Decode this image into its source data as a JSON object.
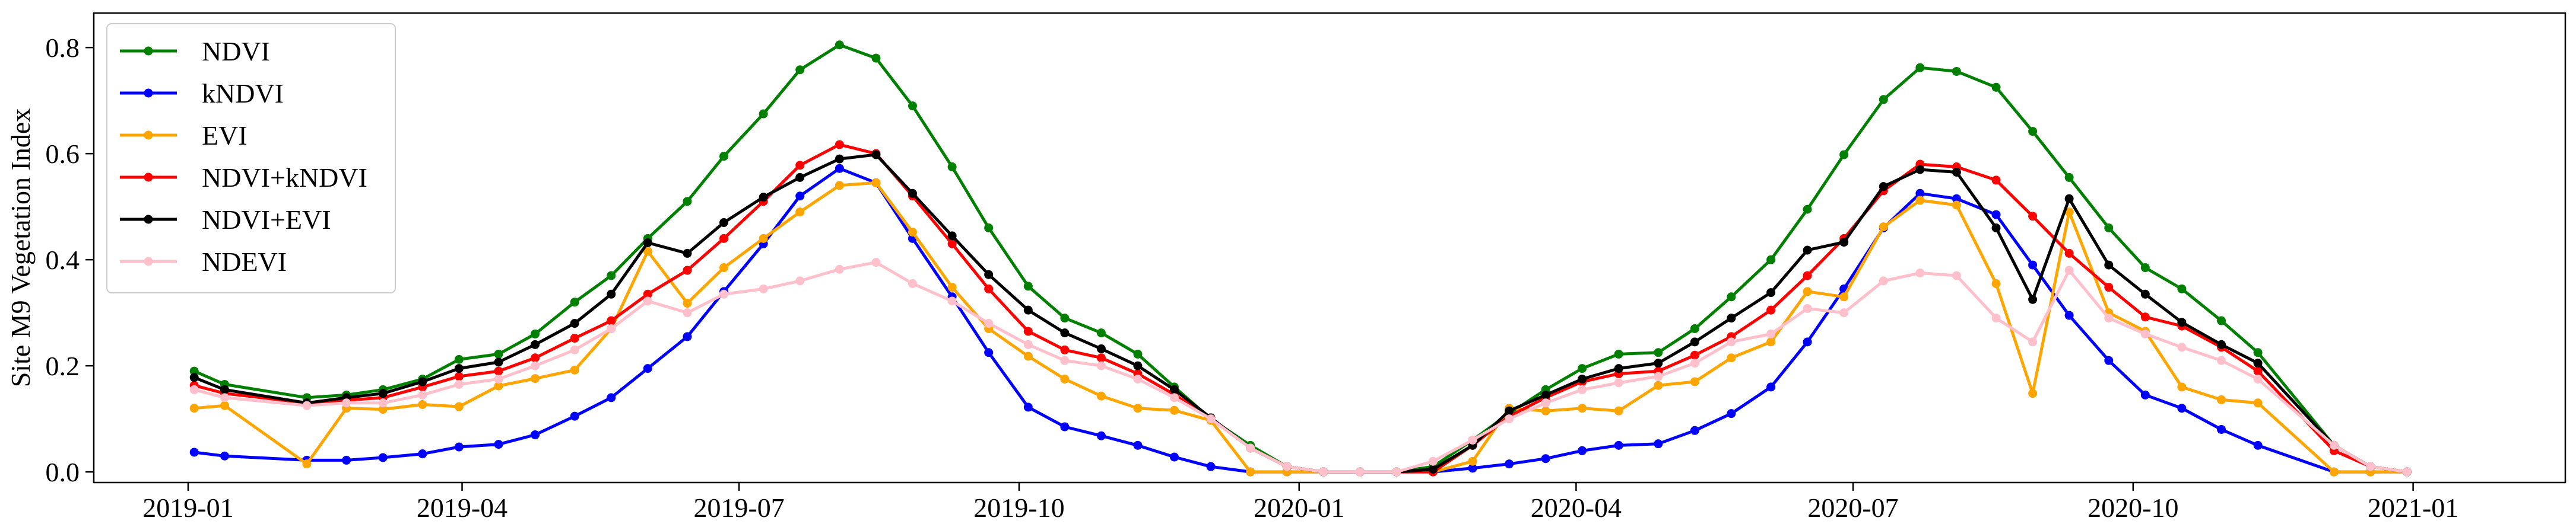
{
  "chart_data": {
    "type": "line",
    "title": "",
    "xlabel": "",
    "ylabel": "Site M9 Vegetation Index",
    "x_axis_type": "date",
    "xlim": [
      "2018-12-01",
      "2021-02-20"
    ],
    "ylim": [
      -0.02,
      0.865
    ],
    "grid": false,
    "legend_position": "top-left",
    "x_tick_labels": [
      "2019-01",
      "2019-04",
      "2019-07",
      "2019-10",
      "2020-01",
      "2020-04",
      "2020-07",
      "2020-10",
      "2021-01"
    ],
    "x_ticks": [
      "2019-01-01",
      "2019-04-01",
      "2019-07-01",
      "2019-10-01",
      "2020-01-01",
      "2020-04-01",
      "2020-07-01",
      "2020-10-01",
      "2021-01-01"
    ],
    "y_ticks": [
      0.0,
      0.2,
      0.4,
      0.6,
      0.8
    ],
    "y_tick_labels": [
      "0.0",
      "0.2",
      "0.4",
      "0.6",
      "0.8"
    ],
    "x": [
      "2019-01-03",
      "2019-01-13",
      "2019-02-09",
      "2019-02-22",
      "2019-03-06",
      "2019-03-19",
      "2019-03-31",
      "2019-04-13",
      "2019-04-25",
      "2019-05-08",
      "2019-05-20",
      "2019-06-01",
      "2019-06-14",
      "2019-06-26",
      "2019-07-09",
      "2019-07-21",
      "2019-08-03",
      "2019-08-15",
      "2019-08-27",
      "2019-09-09",
      "2019-09-21",
      "2019-10-04",
      "2019-10-16",
      "2019-10-28",
      "2019-11-09",
      "2019-11-21",
      "2019-12-03",
      "2019-12-16",
      "2019-12-28",
      "2020-01-09",
      "2020-01-21",
      "2020-02-02",
      "2020-02-14",
      "2020-02-27",
      "2020-03-10",
      "2020-03-22",
      "2020-04-03",
      "2020-04-15",
      "2020-04-28",
      "2020-05-10",
      "2020-05-22",
      "2020-06-04",
      "2020-06-16",
      "2020-06-28",
      "2020-07-11",
      "2020-07-23",
      "2020-08-04",
      "2020-08-17",
      "2020-08-29",
      "2020-09-10",
      "2020-09-23",
      "2020-10-05",
      "2020-10-17",
      "2020-10-30",
      "2020-11-11",
      "2020-12-06",
      "2020-12-18",
      "2020-12-30"
    ],
    "series": [
      {
        "name": "NDVI",
        "color": "#008000",
        "values": [
          0.19,
          0.165,
          0.14,
          0.145,
          0.155,
          0.175,
          0.212,
          0.222,
          0.26,
          0.32,
          0.37,
          0.44,
          0.51,
          0.595,
          0.675,
          0.758,
          0.805,
          0.78,
          0.69,
          0.575,
          0.46,
          0.35,
          0.29,
          0.262,
          0.222,
          0.16,
          0.1,
          0.05,
          0.01,
          0.0,
          0.0,
          0.0,
          0.01,
          0.06,
          0.11,
          0.155,
          0.195,
          0.222,
          0.225,
          0.27,
          0.33,
          0.4,
          0.495,
          0.598,
          0.702,
          0.762,
          0.755,
          0.725,
          0.642,
          0.555,
          0.46,
          0.385,
          0.345,
          0.285,
          0.225,
          0.05,
          0.01,
          0.0
        ]
      },
      {
        "name": "kNDVI",
        "color": "#0000FF",
        "values": [
          0.037,
          0.03,
          0.022,
          0.022,
          0.027,
          0.034,
          0.047,
          0.052,
          0.07,
          0.105,
          0.14,
          0.195,
          0.255,
          0.34,
          0.43,
          0.52,
          0.572,
          0.545,
          0.44,
          0.33,
          0.225,
          0.122,
          0.085,
          0.068,
          0.05,
          0.028,
          0.01,
          0.0,
          0.0,
          0.0,
          0.0,
          0.0,
          0.0,
          0.007,
          0.015,
          0.025,
          0.04,
          0.05,
          0.053,
          0.078,
          0.11,
          0.16,
          0.245,
          0.345,
          0.46,
          0.525,
          0.515,
          0.485,
          0.39,
          0.295,
          0.21,
          0.145,
          0.12,
          0.08,
          0.05,
          0.0,
          0.0,
          0.0
        ]
      },
      {
        "name": "EVI",
        "color": "#FFA500",
        "values": [
          0.12,
          0.125,
          0.015,
          0.12,
          0.118,
          0.127,
          0.123,
          0.162,
          0.176,
          0.192,
          0.27,
          0.416,
          0.318,
          0.385,
          0.44,
          0.49,
          0.54,
          0.545,
          0.452,
          0.348,
          0.27,
          0.218,
          0.175,
          0.143,
          0.12,
          0.116,
          0.097,
          0.0,
          0.0,
          0.0,
          0.0,
          0.0,
          0.0,
          0.02,
          0.12,
          0.115,
          0.12,
          0.115,
          0.163,
          0.17,
          0.215,
          0.245,
          0.34,
          0.33,
          0.462,
          0.512,
          0.503,
          0.355,
          0.148,
          0.49,
          0.3,
          0.265,
          0.16,
          0.136,
          0.13,
          0.0,
          0.0,
          0.0
        ]
      },
      {
        "name": "NDVI+kNDVI",
        "color": "#FF0000",
        "values": [
          0.163,
          0.148,
          0.13,
          0.135,
          0.14,
          0.16,
          0.18,
          0.19,
          0.215,
          0.252,
          0.285,
          0.335,
          0.38,
          0.44,
          0.51,
          0.578,
          0.617,
          0.6,
          0.52,
          0.43,
          0.345,
          0.265,
          0.23,
          0.215,
          0.185,
          0.146,
          0.1,
          0.045,
          0.01,
          0.0,
          0.0,
          0.0,
          0.0,
          0.05,
          0.105,
          0.14,
          0.17,
          0.185,
          0.19,
          0.22,
          0.255,
          0.305,
          0.37,
          0.44,
          0.53,
          0.58,
          0.575,
          0.55,
          0.482,
          0.412,
          0.348,
          0.292,
          0.275,
          0.235,
          0.19,
          0.04,
          0.01,
          0.0
        ]
      },
      {
        "name": "NDVI+EVI",
        "color": "#000000",
        "values": [
          0.178,
          0.155,
          0.13,
          0.14,
          0.148,
          0.17,
          0.195,
          0.207,
          0.24,
          0.28,
          0.335,
          0.432,
          0.412,
          0.47,
          0.518,
          0.555,
          0.59,
          0.598,
          0.525,
          0.445,
          0.372,
          0.305,
          0.262,
          0.232,
          0.2,
          0.155,
          0.102,
          0.045,
          0.01,
          0.0,
          0.0,
          0.0,
          0.005,
          0.05,
          0.115,
          0.145,
          0.175,
          0.195,
          0.205,
          0.245,
          0.29,
          0.338,
          0.418,
          0.433,
          0.538,
          0.57,
          0.565,
          0.46,
          0.325,
          0.515,
          0.39,
          0.335,
          0.282,
          0.24,
          0.205,
          0.05,
          0.01,
          0.0
        ]
      },
      {
        "name": "NDEVI",
        "color": "#FFC0CB",
        "values": [
          0.155,
          0.14,
          0.125,
          0.13,
          0.13,
          0.145,
          0.165,
          0.175,
          0.2,
          0.23,
          0.27,
          0.322,
          0.3,
          0.335,
          0.345,
          0.36,
          0.382,
          0.395,
          0.355,
          0.322,
          0.28,
          0.24,
          0.21,
          0.2,
          0.175,
          0.14,
          0.1,
          0.045,
          0.01,
          0.0,
          0.0,
          0.0,
          0.02,
          0.06,
          0.1,
          0.13,
          0.155,
          0.168,
          0.18,
          0.205,
          0.245,
          0.26,
          0.308,
          0.3,
          0.36,
          0.375,
          0.37,
          0.29,
          0.245,
          0.38,
          0.29,
          0.26,
          0.235,
          0.21,
          0.175,
          0.05,
          0.01,
          0.0
        ]
      }
    ]
  }
}
